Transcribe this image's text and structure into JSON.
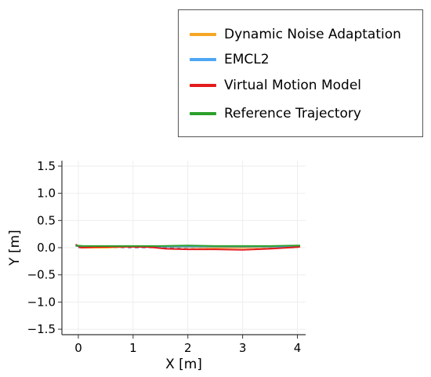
{
  "chart_data": {
    "type": "line",
    "xlabel": "X [m]",
    "ylabel": "Y [m]",
    "xlim": [
      -0.3,
      4.15
    ],
    "ylim": [
      -1.6,
      1.6
    ],
    "xticks": [
      0,
      1,
      2,
      3,
      4
    ],
    "xtick_labels": [
      "0",
      "1",
      "2",
      "3",
      "4"
    ],
    "yticks": [
      1.5,
      1.0,
      0.5,
      0.0,
      -0.5,
      -1.0,
      -1.5
    ],
    "ytick_labels": [
      "1.5",
      "1.0",
      "0.5",
      "0.0",
      "−0.5",
      "−1.0",
      "−1.5"
    ],
    "grid": true,
    "legend_position": "top-right, outside plot",
    "series": [
      {
        "name": "Dynamic Noise Adaptation",
        "color": "#f5a623",
        "x": [
          -0.05,
          0.1,
          0.5,
          1.0,
          1.5,
          2.0,
          2.5,
          3.0,
          3.5,
          4.0,
          4.05
        ],
        "y": [
          0.04,
          0.0,
          0.0,
          0.02,
          0.02,
          0.01,
          0.0,
          0.0,
          0.01,
          0.03,
          0.03
        ]
      },
      {
        "name": "EMCL2",
        "color": "#4da6f5",
        "x": [
          -0.05,
          0.1,
          0.5,
          1.0,
          1.5,
          2.0,
          2.5,
          3.0,
          3.5,
          4.0,
          4.05
        ],
        "y": [
          0.03,
          0.02,
          0.02,
          0.02,
          0.02,
          0.02,
          0.02,
          0.02,
          0.02,
          0.02,
          0.02
        ]
      },
      {
        "name": "Virtual Motion Model",
        "color": "#e31a1c",
        "x": [
          -0.05,
          0.05,
          0.3,
          0.8,
          1.3,
          1.6,
          2.0,
          2.5,
          3.0,
          3.5,
          4.0,
          4.05
        ],
        "y": [
          0.06,
          0.0,
          0.01,
          0.02,
          0.01,
          -0.02,
          -0.03,
          -0.03,
          -0.04,
          -0.02,
          0.01,
          0.02
        ]
      },
      {
        "name": "Reference Trajectory",
        "color": "#2ca02c",
        "x": [
          -0.05,
          0.1,
          0.5,
          1.0,
          1.5,
          2.0,
          2.5,
          3.0,
          3.5,
          4.0,
          4.05
        ],
        "y": [
          0.04,
          0.03,
          0.03,
          0.03,
          0.03,
          0.04,
          0.03,
          0.03,
          0.03,
          0.04,
          0.04
        ]
      }
    ],
    "reference_dashed": {
      "color": "#555577",
      "x": [
        0.0,
        1.0,
        2.0,
        3.0,
        4.0
      ],
      "y": [
        0.0,
        0.0,
        0.0,
        0.0,
        0.0
      ]
    }
  }
}
